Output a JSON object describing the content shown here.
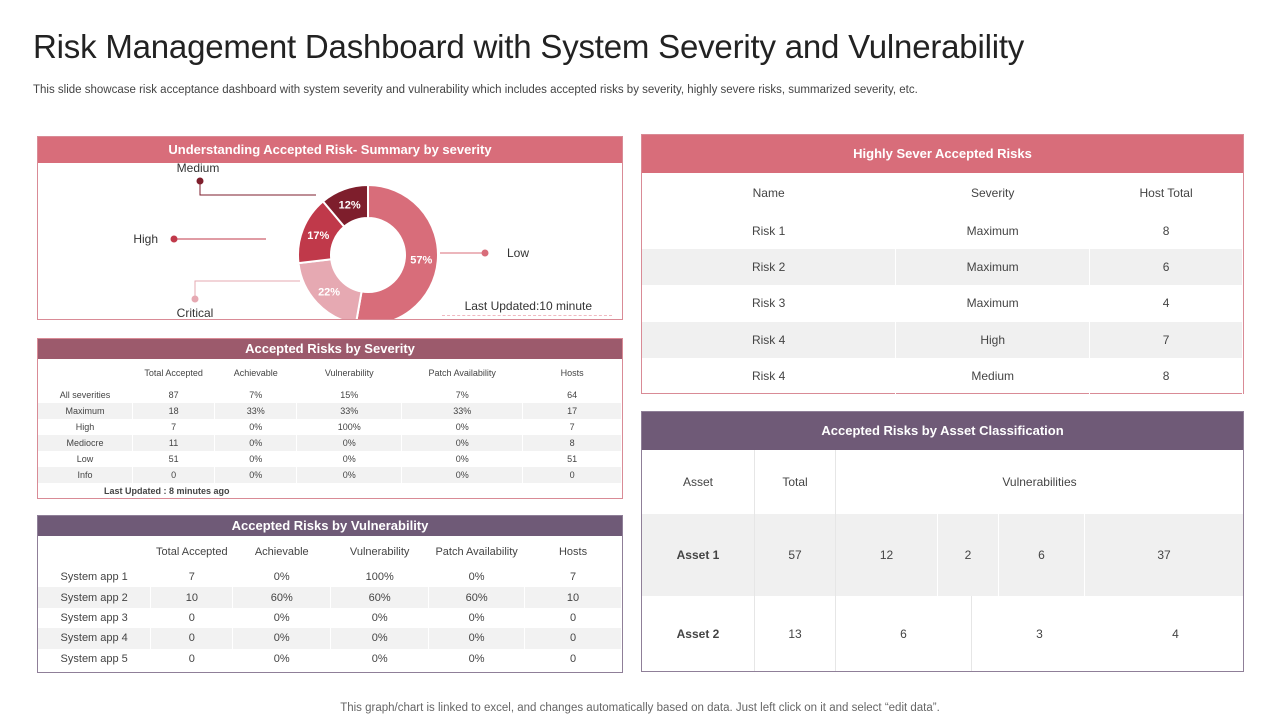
{
  "page": {
    "title": "Risk Management Dashboard with System Severity and Vulnerability",
    "subtitle": "This slide showcase risk acceptance dashboard with system severity and vulnerability which includes accepted risks by severity, highly severe risks, summarized severity, etc.",
    "footer": "This graph/chart is linked to excel,  and changes automatically based on data. Just left click on it and select “edit data”."
  },
  "donut_panel": {
    "title": "Understanding  Accepted Risk-  Summary by severity",
    "last_updated": "Last Updated:10 minute"
  },
  "chart_data": {
    "type": "pie",
    "title": "Understanding  Accepted Risk-  Summary by severity",
    "categories": [
      "Low",
      "Critical",
      "High",
      "Medium"
    ],
    "values": [
      57,
      22,
      17,
      12
    ],
    "labels": [
      "57%",
      "22%",
      "17%",
      "12%"
    ],
    "colors": [
      "#d86d7a",
      "#e6a9b2",
      "#c0394a",
      "#7e1e2c"
    ]
  },
  "severity_table": {
    "title": "Accepted Risks  by  Severity",
    "headers": [
      "",
      "Total Accepted",
      "Achievable",
      "Vulnerability",
      "Patch Availability",
      "Hosts"
    ],
    "rows": [
      [
        "All severities",
        "87",
        "7%",
        "15%",
        "7%",
        "64"
      ],
      [
        "Maximum",
        "18",
        "33%",
        "33%",
        "33%",
        "17"
      ],
      [
        "High",
        "7",
        "0%",
        "100%",
        "0%",
        "7"
      ],
      [
        "Mediocre",
        "11",
        "0%",
        "0%",
        "0%",
        "8"
      ],
      [
        "Low",
        "51",
        "0%",
        "0%",
        "0%",
        "51"
      ],
      [
        "Info",
        "0",
        "0%",
        "0%",
        "0%",
        "0"
      ]
    ],
    "last_updated": "Last Updated : 8 minutes ago"
  },
  "vulnerability_table": {
    "title": "Accepted Risks  by  Vulnerability",
    "headers": [
      "",
      "Total Accepted",
      "Achievable",
      "Vulnerability",
      "Patch Availability",
      "Hosts"
    ],
    "rows": [
      [
        "System app 1",
        "7",
        "0%",
        "100%",
        "0%",
        "7"
      ],
      [
        "System app 2",
        "10",
        "60%",
        "60%",
        "60%",
        "10"
      ],
      [
        "System app 3",
        "0",
        "0%",
        "0%",
        "0%",
        "0"
      ],
      [
        "System app 4",
        "0",
        "0%",
        "0%",
        "0%",
        "0"
      ],
      [
        "System app 5",
        "0",
        "0%",
        "0%",
        "0%",
        "0"
      ]
    ]
  },
  "severe_table": {
    "title": "Highly Sever Accepted Risks",
    "headers": [
      "Name",
      "Severity",
      "Host Total"
    ],
    "rows": [
      [
        "Risk 1",
        "Maximum",
        "8"
      ],
      [
        "Risk 2",
        "Maximum",
        "6"
      ],
      [
        "Risk 3",
        "Maximum",
        "4"
      ],
      [
        "Risk 4",
        "High",
        "7"
      ],
      [
        "Risk 4",
        "Medium",
        "8"
      ]
    ]
  },
  "asset_table": {
    "title": "Accepted Risks  by Asset Classification",
    "headers": [
      "Asset",
      "Total",
      "Vulnerabilities"
    ],
    "rows": [
      {
        "asset": "Asset 1",
        "total": "57",
        "vulnerabilities": [
          "12",
          "2",
          "6",
          "37"
        ]
      },
      {
        "asset": "Asset 2",
        "total": "13",
        "vulnerabilities": [
          "6",
          "3",
          "4"
        ]
      }
    ]
  }
}
